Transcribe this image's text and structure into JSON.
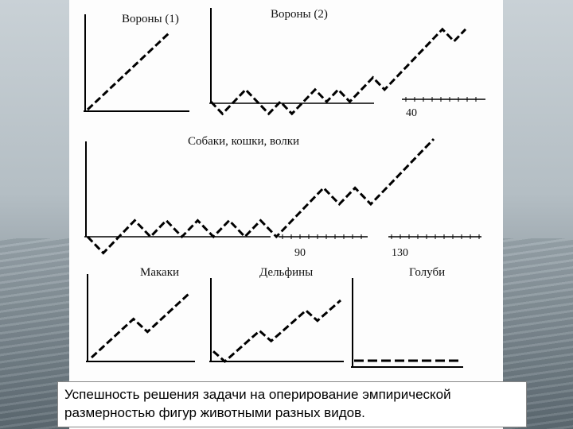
{
  "caption": {
    "line1": "Успешность решения задачи на оперирование эмпирической",
    "line2": "размерностью фигур животными разных видов."
  },
  "chart_data": [
    {
      "type": "line",
      "title": "Вороны (1)",
      "x": [
        0,
        1,
        2,
        3,
        4,
        5,
        6
      ],
      "y": [
        0,
        1,
        2,
        3,
        4,
        5,
        6
      ],
      "ylim": [
        0,
        7
      ]
    },
    {
      "type": "line",
      "title": "Вороны (2)",
      "x": [
        0,
        1,
        2,
        3,
        4,
        5,
        6,
        7,
        8,
        9,
        10,
        11,
        12,
        13,
        14,
        15,
        16,
        17,
        18,
        19,
        20,
        21,
        22
      ],
      "y": [
        0,
        -1,
        0,
        1,
        0,
        -1,
        0,
        -1,
        0,
        1,
        0,
        1,
        0,
        1,
        2,
        1,
        2,
        3,
        4,
        5,
        6,
        5,
        6
      ],
      "x_tick_labels": [
        "40"
      ],
      "ylim": [
        -2,
        7
      ]
    },
    {
      "type": "line",
      "title": "Собаки, кошки, волки",
      "x": [
        0,
        1,
        2,
        3,
        4,
        5,
        6,
        7,
        8,
        9,
        10,
        11,
        12,
        13,
        14,
        15,
        16,
        17,
        18,
        19,
        20,
        21,
        22
      ],
      "y": [
        0,
        -1,
        0,
        1,
        0,
        1,
        0,
        1,
        0,
        1,
        0,
        1,
        0,
        1,
        2,
        3,
        2,
        3,
        2,
        3,
        4,
        5,
        6
      ],
      "x_tick_labels": [
        "90",
        "130"
      ],
      "ylim": [
        -2,
        7
      ]
    },
    {
      "type": "line",
      "title": "Макаки",
      "x": [
        0,
        1,
        2,
        3,
        4,
        5,
        6,
        7
      ],
      "y": [
        0,
        1,
        2,
        3,
        2,
        3,
        4,
        5
      ],
      "ylim": [
        -1,
        6
      ]
    },
    {
      "type": "line",
      "title": "Дельфины",
      "x": [
        0,
        1,
        2,
        3,
        4,
        5,
        6,
        7,
        8,
        9,
        10,
        11
      ],
      "y": [
        1,
        0,
        1,
        2,
        3,
        2,
        3,
        4,
        5,
        4,
        5,
        6
      ],
      "ylim": [
        -1,
        7
      ]
    },
    {
      "type": "line",
      "title": "Голуби",
      "x": [
        0,
        1,
        2,
        3,
        4,
        5,
        6,
        7
      ],
      "y": [
        0,
        0,
        0,
        0,
        0,
        0,
        0,
        0
      ],
      "ylim": [
        -1,
        6
      ]
    }
  ]
}
